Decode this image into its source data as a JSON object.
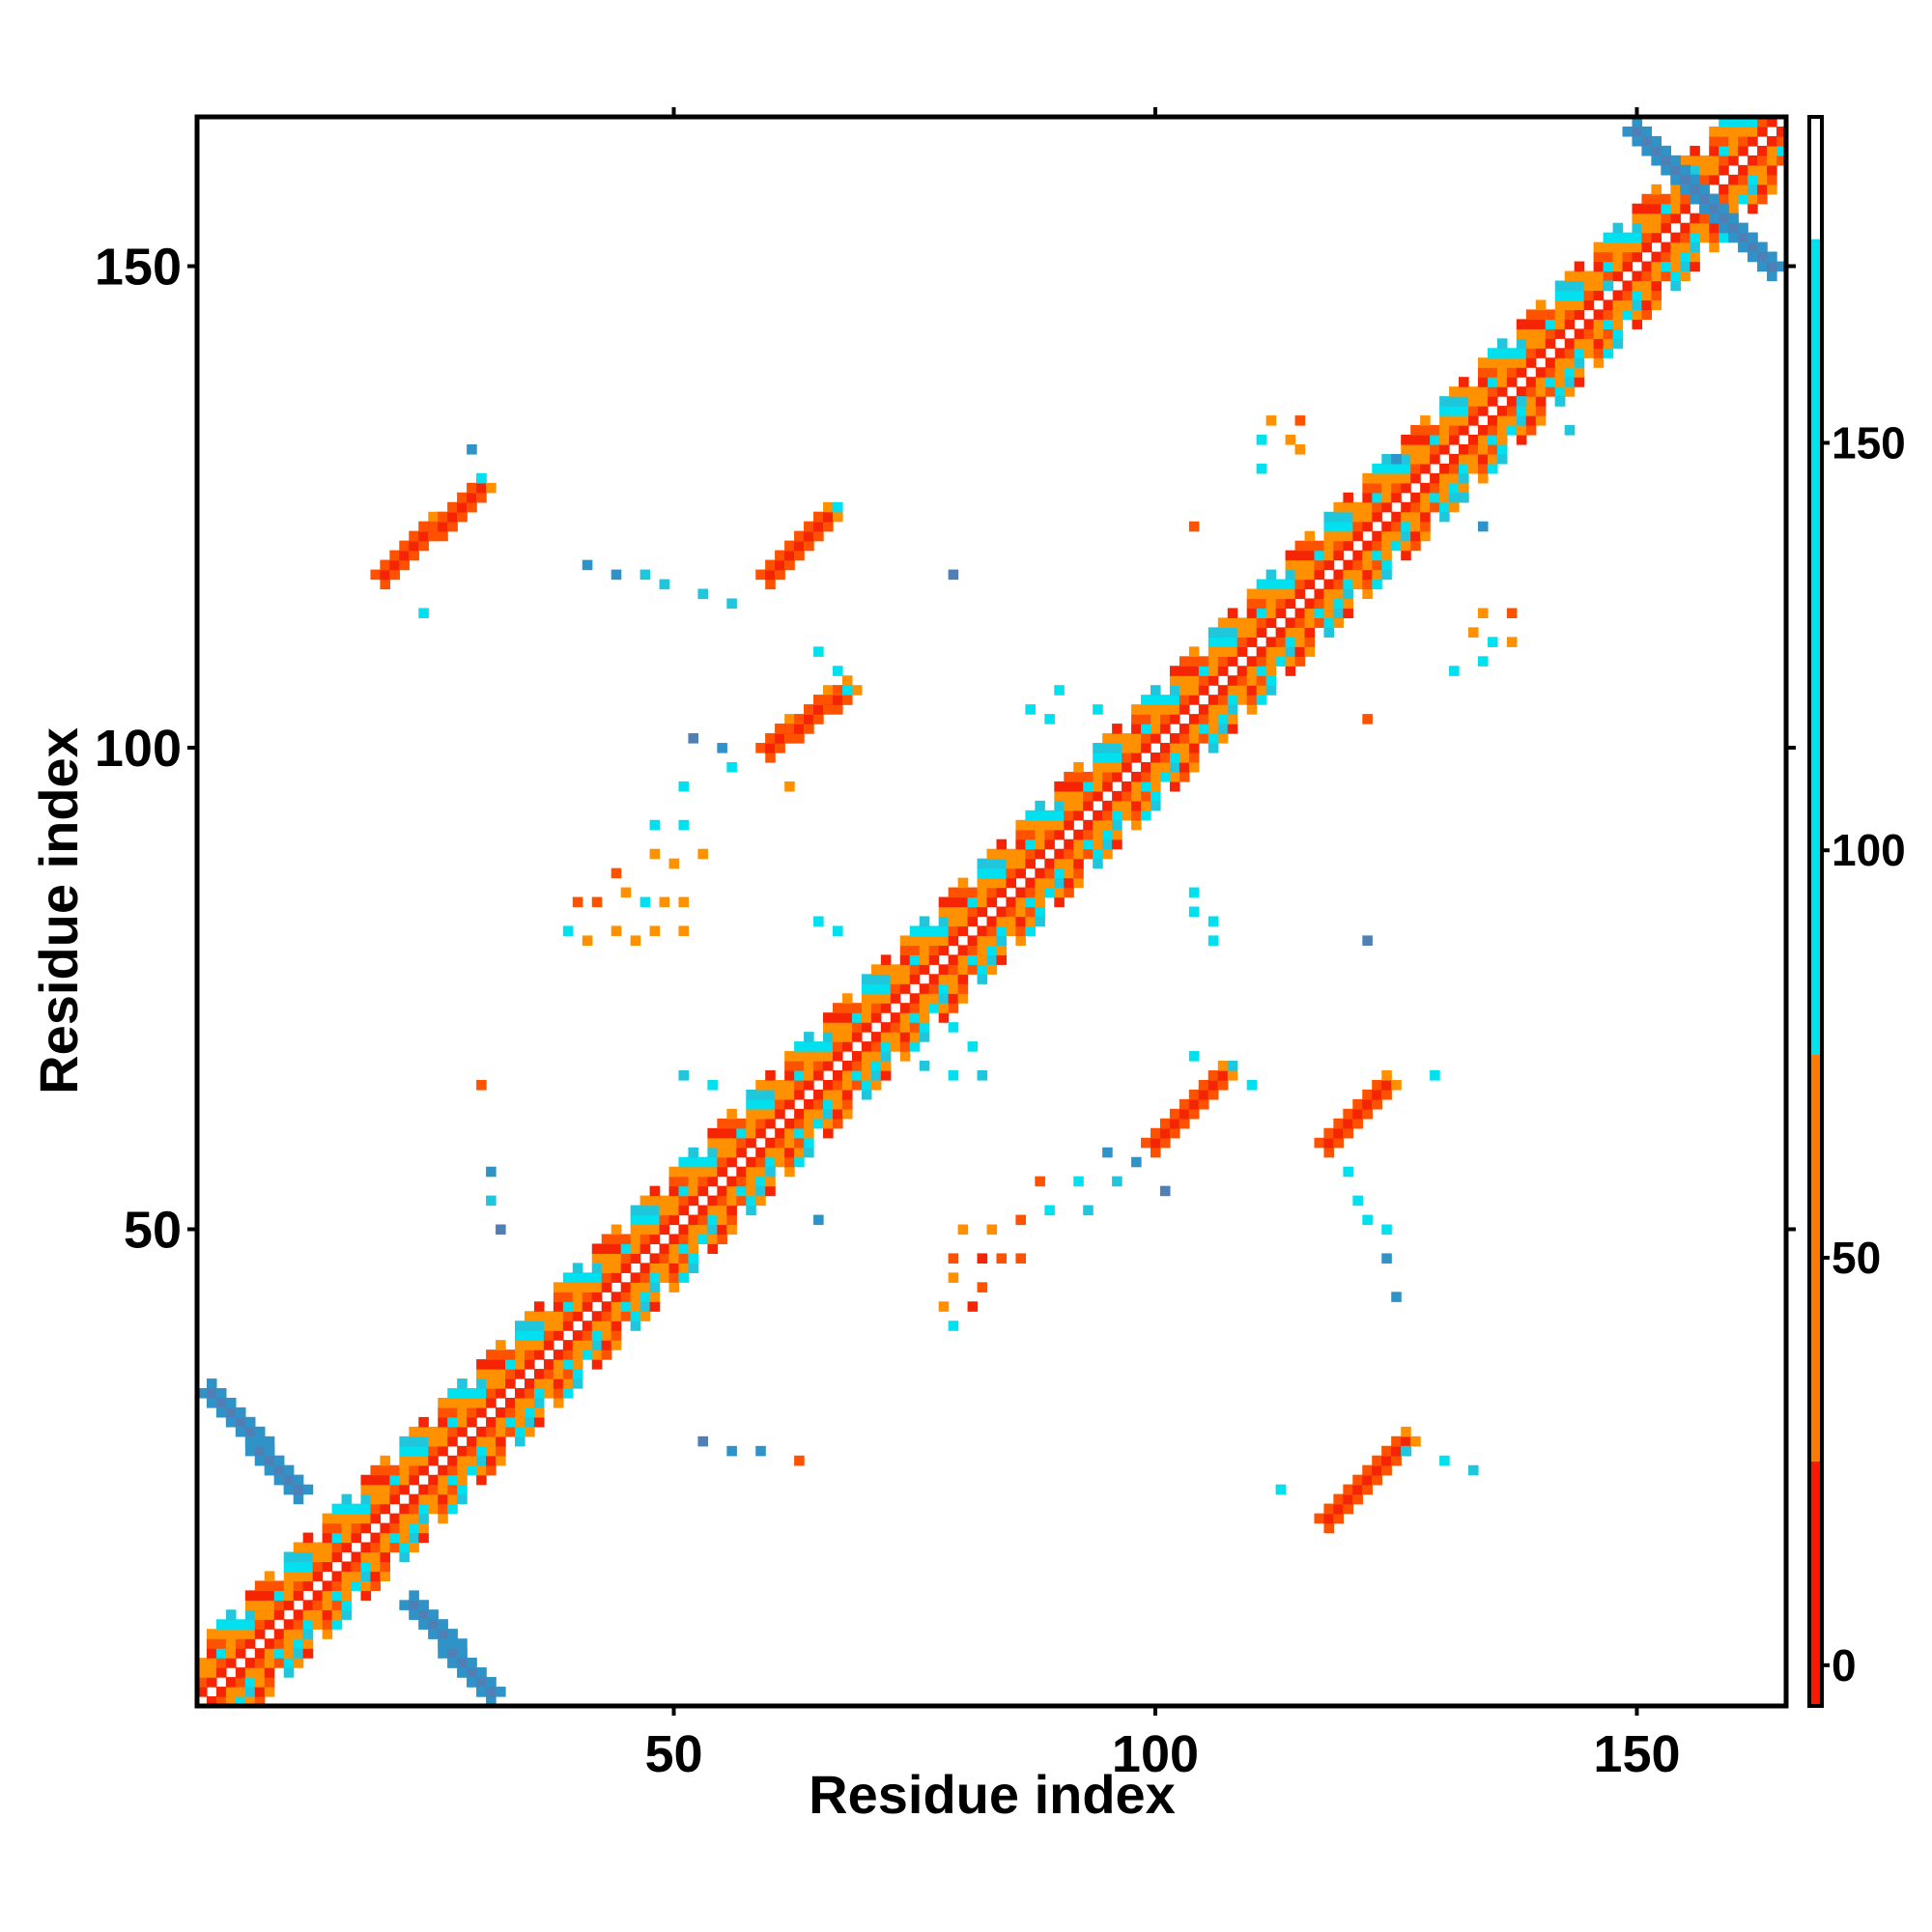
{
  "chart_data": {
    "type": "heatmap",
    "title": "",
    "xlabel": "Residue index",
    "ylabel": "Residue index",
    "x_range": [
      1,
      165
    ],
    "y_range": [
      1,
      165
    ],
    "x_ticks": [
      50,
      100,
      150
    ],
    "y_ticks": [
      50,
      100,
      150
    ],
    "grid": false,
    "colorbar": {
      "position": "right",
      "range": [
        -5,
        190
      ],
      "ticks": [
        0,
        50,
        100,
        150
      ],
      "bands": [
        {
          "from": -5,
          "to": 25,
          "color": "#ff1800"
        },
        {
          "from": 25,
          "to": 75,
          "color": "#ff7a00"
        },
        {
          "from": 75,
          "to": 175,
          "color": "#00e3ef"
        },
        {
          "from": 175,
          "to": 190,
          "color": "#ffffff"
        }
      ]
    },
    "colors": {
      "red": "#f42404",
      "dark_orange": "#ff5200",
      "orange": "#ff9100",
      "cyan": "#00e0ee",
      "teal": "#1fc6dc",
      "blue": "#2f93c8",
      "steel": "#4f7fb4"
    },
    "diagonal_band": {
      "from": 1,
      "to": 165,
      "width": 7
    },
    "patches": [
      {
        "x_from": 2,
        "x_to": 11,
        "y_from": 33,
        "y_to": 23,
        "color": "steel"
      },
      {
        "x_from": 23,
        "x_to": 31,
        "y_from": 11,
        "y_to": 2,
        "color": "steel"
      },
      {
        "x_from": 20,
        "x_to": 30,
        "y_from": 118,
        "y_to": 127,
        "color": "red"
      },
      {
        "x_from": 60,
        "x_to": 66,
        "y_from": 118,
        "y_to": 124,
        "color": "red"
      },
      {
        "x_from": 60,
        "x_to": 68,
        "y_from": 100,
        "y_to": 106,
        "color": "red"
      },
      {
        "x_from": 100,
        "x_to": 107,
        "y_from": 59,
        "y_to": 66,
        "color": "red"
      },
      {
        "x_from": 118,
        "x_to": 124,
        "y_from": 59,
        "y_to": 65,
        "color": "red"
      },
      {
        "x_from": 118,
        "x_to": 126,
        "y_from": 20,
        "y_to": 28,
        "color": "red"
      },
      {
        "x_from": 150,
        "x_to": 164,
        "y_from": 164,
        "y_to": 150,
        "color": "steel"
      }
    ],
    "scattered_points": [
      {
        "x": 41,
        "y": 119,
        "color": "blue"
      },
      {
        "x": 44,
        "y": 118,
        "color": "blue"
      },
      {
        "x": 47,
        "y": 118,
        "color": "teal"
      },
      {
        "x": 49,
        "y": 117,
        "color": "teal"
      },
      {
        "x": 53,
        "y": 116,
        "color": "teal"
      },
      {
        "x": 56,
        "y": 115,
        "color": "teal"
      },
      {
        "x": 79,
        "y": 118,
        "color": "steel"
      },
      {
        "x": 67,
        "y": 125,
        "color": "cyan"
      },
      {
        "x": 29,
        "y": 131,
        "color": "blue"
      },
      {
        "x": 30,
        "y": 128,
        "color": "cyan"
      },
      {
        "x": 24,
        "y": 114,
        "color": "cyan"
      },
      {
        "x": 65,
        "y": 110,
        "color": "cyan"
      },
      {
        "x": 67,
        "y": 108,
        "color": "cyan"
      },
      {
        "x": 68,
        "y": 106,
        "color": "cyan"
      },
      {
        "x": 52,
        "y": 101,
        "color": "steel"
      },
      {
        "x": 55,
        "y": 100,
        "color": "blue"
      },
      {
        "x": 56,
        "y": 98,
        "color": "cyan"
      },
      {
        "x": 62,
        "y": 96,
        "color": "orange"
      },
      {
        "x": 51,
        "y": 96,
        "color": "cyan"
      },
      {
        "x": 48,
        "y": 92,
        "color": "cyan"
      },
      {
        "x": 51,
        "y": 92,
        "color": "cyan"
      },
      {
        "x": 48,
        "y": 89,
        "color": "orange"
      },
      {
        "x": 50,
        "y": 88,
        "color": "orange"
      },
      {
        "x": 53,
        "y": 89,
        "color": "orange"
      },
      {
        "x": 44,
        "y": 87,
        "color": "dark_orange"
      },
      {
        "x": 45,
        "y": 85,
        "color": "orange"
      },
      {
        "x": 47,
        "y": 84,
        "color": "cyan"
      },
      {
        "x": 49,
        "y": 84,
        "color": "orange"
      },
      {
        "x": 51,
        "y": 84,
        "color": "orange"
      },
      {
        "x": 40,
        "y": 84,
        "color": "dark_orange"
      },
      {
        "x": 42,
        "y": 84,
        "color": "dark_orange"
      },
      {
        "x": 39,
        "y": 81,
        "color": "cyan"
      },
      {
        "x": 41,
        "y": 80,
        "color": "orange"
      },
      {
        "x": 44,
        "y": 81,
        "color": "orange"
      },
      {
        "x": 46,
        "y": 80,
        "color": "orange"
      },
      {
        "x": 48,
        "y": 81,
        "color": "orange"
      },
      {
        "x": 51,
        "y": 81,
        "color": "orange"
      },
      {
        "x": 65,
        "y": 82,
        "color": "cyan"
      },
      {
        "x": 67,
        "y": 81,
        "color": "cyan"
      },
      {
        "x": 30,
        "y": 65,
        "color": "dark_orange"
      },
      {
        "x": 31,
        "y": 56,
        "color": "blue"
      },
      {
        "x": 31,
        "y": 53,
        "color": "teal"
      },
      {
        "x": 32,
        "y": 50,
        "color": "steel"
      },
      {
        "x": 51,
        "y": 66,
        "color": "teal"
      },
      {
        "x": 54,
        "y": 65,
        "color": "cyan"
      },
      {
        "x": 53,
        "y": 28,
        "color": "steel"
      },
      {
        "x": 56,
        "y": 27,
        "color": "blue"
      },
      {
        "x": 59,
        "y": 27,
        "color": "blue"
      },
      {
        "x": 63,
        "y": 26,
        "color": "dark_orange"
      },
      {
        "x": 65,
        "y": 51,
        "color": "blue"
      },
      {
        "x": 76,
        "y": 67,
        "color": "teal"
      },
      {
        "x": 79,
        "y": 66,
        "color": "cyan"
      },
      {
        "x": 82,
        "y": 66,
        "color": "teal"
      },
      {
        "x": 80,
        "y": 50,
        "color": "orange"
      },
      {
        "x": 83,
        "y": 50,
        "color": "orange"
      },
      {
        "x": 86,
        "y": 51,
        "color": "dark_orange"
      },
      {
        "x": 89,
        "y": 52,
        "color": "cyan"
      },
      {
        "x": 93,
        "y": 52,
        "color": "teal"
      },
      {
        "x": 88,
        "y": 55,
        "color": "dark_orange"
      },
      {
        "x": 92,
        "y": 55,
        "color": "cyan"
      },
      {
        "x": 96,
        "y": 55,
        "color": "teal"
      },
      {
        "x": 79,
        "y": 47,
        "color": "dark_orange"
      },
      {
        "x": 82,
        "y": 47,
        "color": "red"
      },
      {
        "x": 84,
        "y": 47,
        "color": "dark_orange"
      },
      {
        "x": 86,
        "y": 47,
        "color": "dark_orange"
      },
      {
        "x": 79,
        "y": 45,
        "color": "orange"
      },
      {
        "x": 82,
        "y": 44,
        "color": "dark_orange"
      },
      {
        "x": 78,
        "y": 42,
        "color": "orange"
      },
      {
        "x": 81,
        "y": 42,
        "color": "red"
      },
      {
        "x": 79,
        "y": 40,
        "color": "cyan"
      },
      {
        "x": 95,
        "y": 58,
        "color": "blue"
      },
      {
        "x": 98,
        "y": 57,
        "color": "blue"
      },
      {
        "x": 101,
        "y": 54,
        "color": "steel"
      },
      {
        "x": 104,
        "y": 85,
        "color": "cyan"
      },
      {
        "x": 104,
        "y": 83,
        "color": "cyan"
      },
      {
        "x": 106,
        "y": 82,
        "color": "cyan"
      },
      {
        "x": 106,
        "y": 80,
        "color": "cyan"
      },
      {
        "x": 79,
        "y": 71,
        "color": "cyan"
      },
      {
        "x": 81,
        "y": 69,
        "color": "cyan"
      },
      {
        "x": 112,
        "y": 134,
        "color": "orange"
      },
      {
        "x": 115,
        "y": 134,
        "color": "dark_orange"
      },
      {
        "x": 111,
        "y": 132,
        "color": "cyan"
      },
      {
        "x": 114,
        "y": 132,
        "color": "orange"
      },
      {
        "x": 115,
        "y": 131,
        "color": "orange"
      },
      {
        "x": 111,
        "y": 129,
        "color": "cyan"
      },
      {
        "x": 104,
        "y": 123,
        "color": "dark_orange"
      },
      {
        "x": 134,
        "y": 114,
        "color": "orange"
      },
      {
        "x": 137,
        "y": 114,
        "color": "dark_orange"
      },
      {
        "x": 133,
        "y": 112,
        "color": "orange"
      },
      {
        "x": 135,
        "y": 111,
        "color": "cyan"
      },
      {
        "x": 137,
        "y": 111,
        "color": "orange"
      },
      {
        "x": 134,
        "y": 109,
        "color": "cyan"
      },
      {
        "x": 131,
        "y": 108,
        "color": "cyan"
      },
      {
        "x": 122,
        "y": 103,
        "color": "dark_orange"
      },
      {
        "x": 90,
        "y": 106,
        "color": "cyan"
      },
      {
        "x": 94,
        "y": 104,
        "color": "cyan"
      },
      {
        "x": 87,
        "y": 104,
        "color": "cyan"
      },
      {
        "x": 89,
        "y": 103,
        "color": "cyan"
      },
      {
        "x": 122,
        "y": 80,
        "color": "steel"
      },
      {
        "x": 120,
        "y": 56,
        "color": "cyan"
      },
      {
        "x": 121,
        "y": 53,
        "color": "cyan"
      },
      {
        "x": 122,
        "y": 51,
        "color": "cyan"
      },
      {
        "x": 124,
        "y": 50,
        "color": "cyan"
      },
      {
        "x": 124,
        "y": 47,
        "color": "blue"
      },
      {
        "x": 125,
        "y": 43,
        "color": "blue"
      },
      {
        "x": 129,
        "y": 66,
        "color": "cyan"
      },
      {
        "x": 113,
        "y": 23,
        "color": "cyan"
      },
      {
        "x": 126,
        "y": 27,
        "color": "teal"
      },
      {
        "x": 130,
        "y": 26,
        "color": "cyan"
      },
      {
        "x": 133,
        "y": 25,
        "color": "teal"
      },
      {
        "x": 104,
        "y": 68,
        "color": "cyan"
      },
      {
        "x": 108,
        "y": 67,
        "color": "teal"
      },
      {
        "x": 110,
        "y": 65,
        "color": "cyan"
      },
      {
        "x": 132,
        "y": 126,
        "color": "teal"
      },
      {
        "x": 134,
        "y": 123,
        "color": "blue"
      },
      {
        "x": 125,
        "y": 130,
        "color": "blue"
      },
      {
        "x": 138,
        "y": 136,
        "color": "teal"
      },
      {
        "x": 142,
        "y": 136,
        "color": "teal"
      },
      {
        "x": 143,
        "y": 133,
        "color": "teal"
      },
      {
        "x": 147,
        "y": 148,
        "color": "teal"
      }
    ]
  }
}
